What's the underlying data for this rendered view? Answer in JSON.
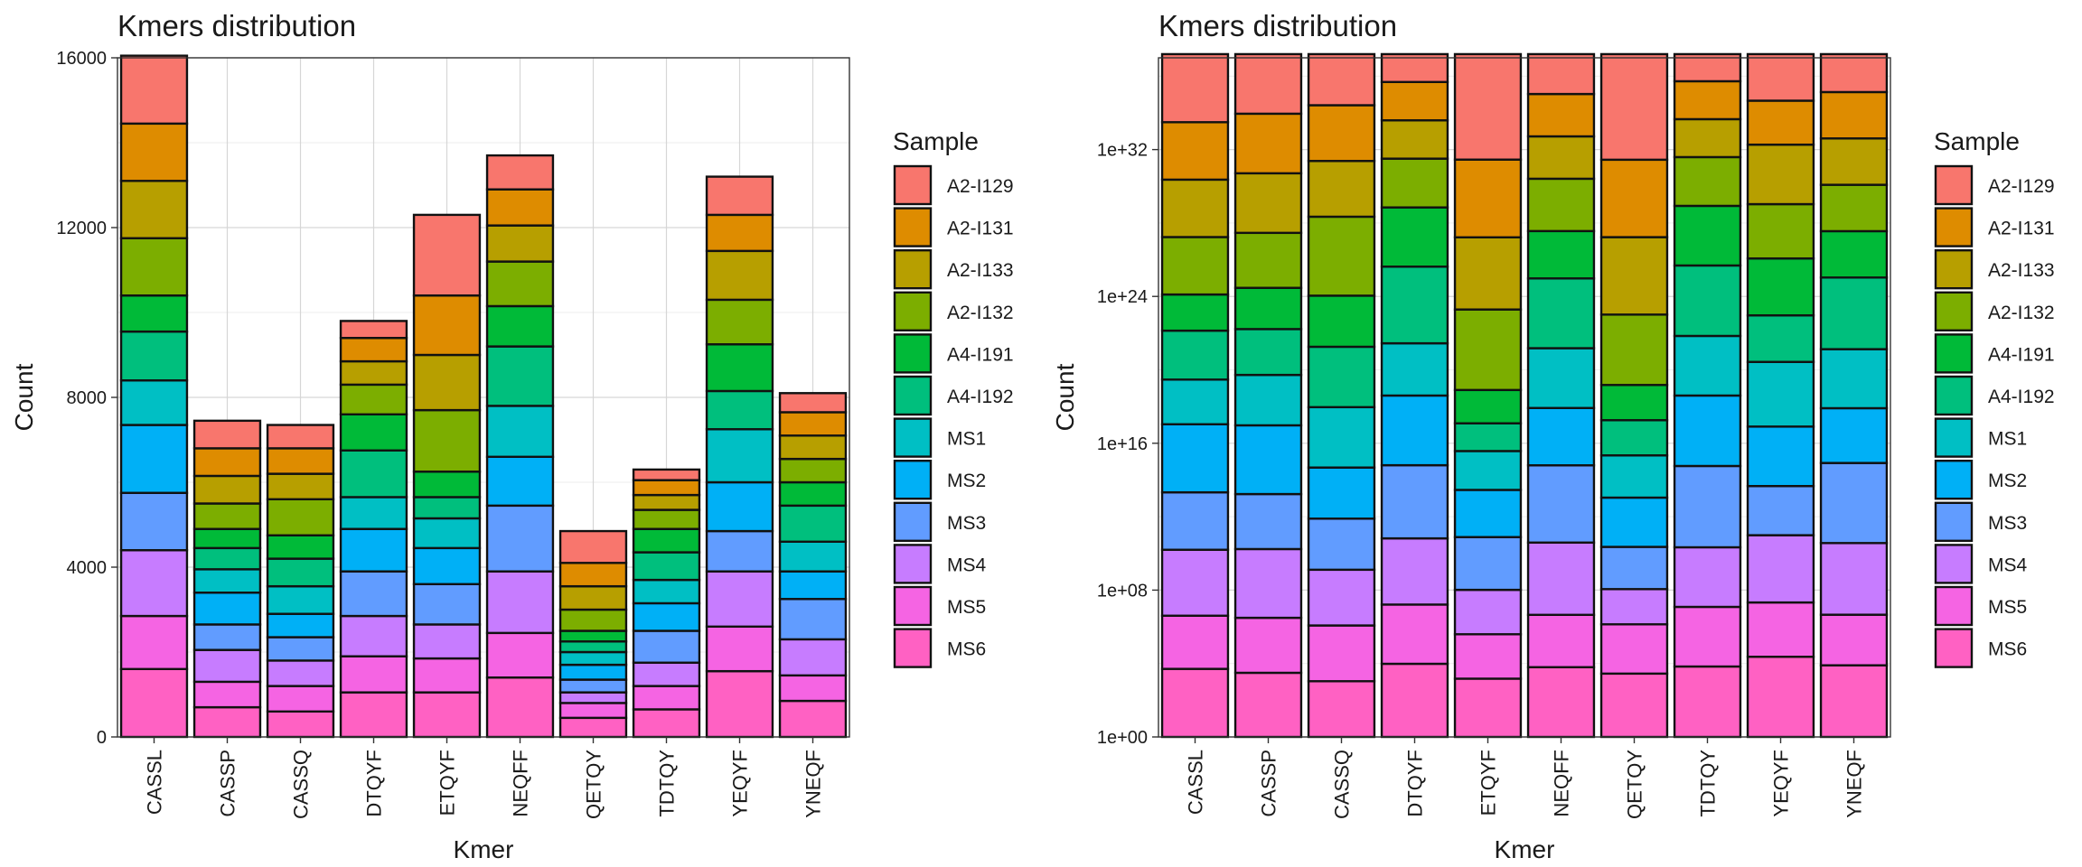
{
  "chart_data": [
    {
      "type": "bar",
      "stacked": true,
      "title": "Kmers distribution",
      "xlabel": "Kmer",
      "ylabel": "Count",
      "ylim": [
        0,
        16000
      ],
      "yscale": "linear",
      "yticks": [
        0,
        4000,
        8000,
        12000,
        16000
      ],
      "ytick_labels": [
        "0",
        "4000",
        "8000",
        "12000",
        "16000"
      ],
      "grid": true,
      "legend_title": "Sample",
      "legend_position": "right",
      "categories": [
        "CASSL",
        "CASSP",
        "CASSQ",
        "DTQYF",
        "ETQYF",
        "NEQFF",
        "QETQY",
        "TDTQY",
        "YEQYF",
        "YNEQF"
      ],
      "series": [
        {
          "name": "MS6",
          "color": "#FF61C3",
          "values": [
            1600,
            700,
            600,
            1050,
            1050,
            1400,
            450,
            650,
            1550,
            850
          ]
        },
        {
          "name": "MS5",
          "color": "#F564E3",
          "values": [
            1250,
            600,
            600,
            850,
            800,
            1050,
            350,
            550,
            1050,
            600
          ]
        },
        {
          "name": "MS4",
          "color": "#C77CFF",
          "values": [
            1550,
            750,
            600,
            950,
            800,
            1450,
            250,
            550,
            1300,
            850
          ]
        },
        {
          "name": "MS3",
          "color": "#619CFF",
          "values": [
            1350,
            600,
            550,
            1050,
            950,
            1550,
            300,
            750,
            950,
            950
          ]
        },
        {
          "name": "MS2",
          "color": "#00B0F6",
          "values": [
            1600,
            750,
            550,
            1000,
            850,
            1150,
            350,
            650,
            1150,
            650
          ]
        },
        {
          "name": "MS1",
          "color": "#00BFC4",
          "values": [
            1050,
            550,
            650,
            750,
            700,
            1200,
            300,
            550,
            1250,
            700
          ]
        },
        {
          "name": "A4-I192",
          "color": "#00BF7D",
          "values": [
            1150,
            500,
            650,
            1100,
            500,
            1400,
            250,
            650,
            900,
            850
          ]
        },
        {
          "name": "A4-I191",
          "color": "#00BA38",
          "values": [
            850,
            450,
            550,
            850,
            600,
            950,
            250,
            550,
            1100,
            550
          ]
        },
        {
          "name": "A2-I132",
          "color": "#7CAE00",
          "values": [
            1350,
            600,
            850,
            700,
            1450,
            1050,
            500,
            450,
            1050,
            550
          ]
        },
        {
          "name": "A2-I133",
          "color": "#B79F00",
          "values": [
            1350,
            650,
            600,
            550,
            1300,
            850,
            550,
            350,
            1150,
            550
          ]
        },
        {
          "name": "A2-I131",
          "color": "#DE8C00",
          "values": [
            1350,
            650,
            600,
            550,
            1400,
            850,
            550,
            350,
            850,
            550
          ]
        },
        {
          "name": "A2-I129",
          "color": "#F8766D",
          "values": [
            1600,
            650,
            550,
            400,
            1900,
            800,
            750,
            250,
            900,
            450
          ]
        }
      ]
    },
    {
      "type": "bar",
      "stacked": true,
      "title": "Kmers distribution",
      "xlabel": "Kmer",
      "ylabel": "Count",
      "yscale": "log10",
      "ylim": [
        1,
        1e+37
      ],
      "yticks": [
        1,
        100000000.0,
        1e+16,
        1e+24,
        1e+32
      ],
      "ytick_labels": [
        "1e+00",
        "1e+08",
        "1e+16",
        "1e+24",
        "1e+32"
      ],
      "grid": true,
      "legend_title": "Sample",
      "legend_position": "right",
      "categories": [
        "CASSL",
        "CASSP",
        "CASSQ",
        "DTQYF",
        "ETQYF",
        "NEQFF",
        "QETQY",
        "TDTQY",
        "YEQYF",
        "YNEQF"
      ],
      "series": [
        {
          "name": "MS6",
          "color": "#FF61C3",
          "values": [
            1600,
            700,
            600,
            1050,
            1050,
            1400,
            450,
            650,
            1550,
            850
          ]
        },
        {
          "name": "MS5",
          "color": "#F564E3",
          "values": [
            1250,
            600,
            600,
            850,
            800,
            1050,
            350,
            550,
            1050,
            600
          ]
        },
        {
          "name": "MS4",
          "color": "#C77CFF",
          "values": [
            1550,
            750,
            600,
            950,
            800,
            1450,
            250,
            550,
            1300,
            850
          ]
        },
        {
          "name": "MS3",
          "color": "#619CFF",
          "values": [
            1350,
            600,
            550,
            1050,
            950,
            1550,
            300,
            750,
            950,
            950
          ]
        },
        {
          "name": "MS2",
          "color": "#00B0F6",
          "values": [
            1600,
            750,
            550,
            1000,
            850,
            1150,
            350,
            650,
            1150,
            650
          ]
        },
        {
          "name": "MS1",
          "color": "#00BFC4",
          "values": [
            1050,
            550,
            650,
            750,
            700,
            1200,
            300,
            550,
            1250,
            700
          ]
        },
        {
          "name": "A4-I192",
          "color": "#00BF7D",
          "values": [
            1150,
            500,
            650,
            1100,
            500,
            1400,
            250,
            650,
            900,
            850
          ]
        },
        {
          "name": "A4-I191",
          "color": "#00BA38",
          "values": [
            850,
            450,
            550,
            850,
            600,
            950,
            250,
            550,
            1100,
            550
          ]
        },
        {
          "name": "A2-I132",
          "color": "#7CAE00",
          "values": [
            1350,
            600,
            850,
            700,
            1450,
            1050,
            500,
            450,
            1050,
            550
          ]
        },
        {
          "name": "A2-I133",
          "color": "#B79F00",
          "values": [
            1350,
            650,
            600,
            550,
            1300,
            850,
            550,
            350,
            1150,
            550
          ]
        },
        {
          "name": "A2-I131",
          "color": "#DE8C00",
          "values": [
            1350,
            650,
            600,
            550,
            1400,
            850,
            550,
            350,
            850,
            550
          ]
        },
        {
          "name": "A2-I129",
          "color": "#F8766D",
          "values": [
            1600,
            650,
            550,
            400,
            1900,
            800,
            750,
            250,
            900,
            450
          ]
        }
      ]
    }
  ]
}
